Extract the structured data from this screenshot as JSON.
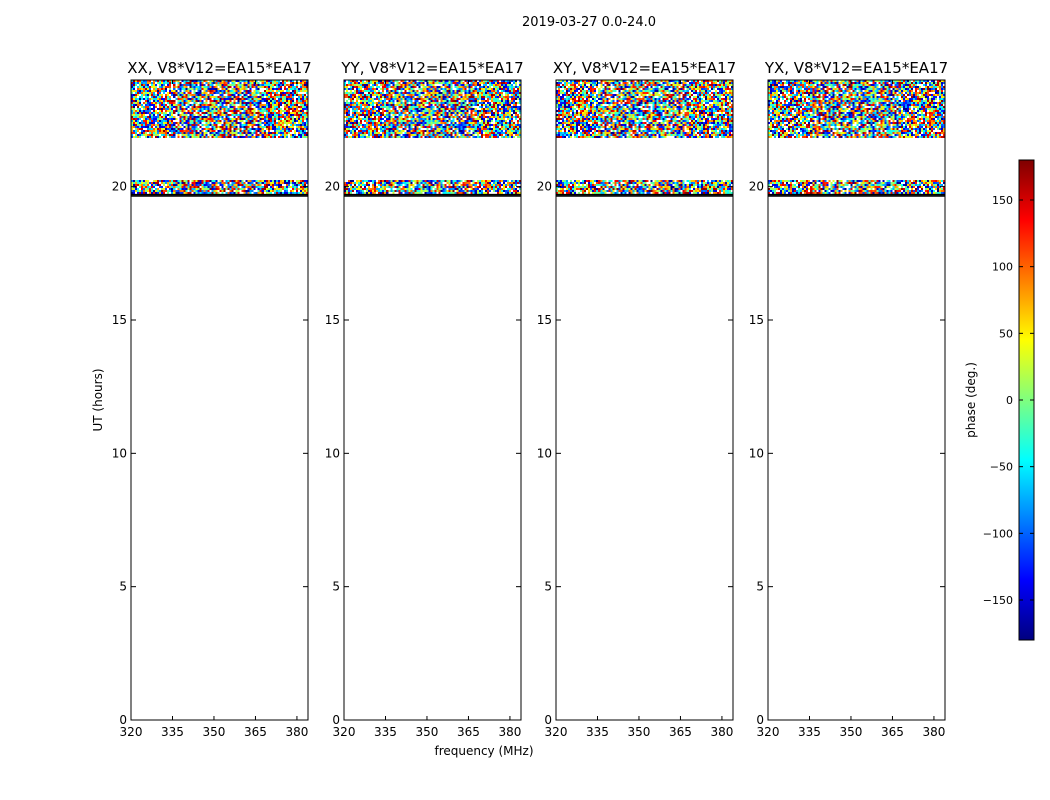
{
  "figure": {
    "suptitle": "2019-03-27 0.0-24.0",
    "ylabel": "UT (hours)",
    "xlabel": "frequency (MHz)",
    "colorbar_label": "phase (deg.)"
  },
  "colorbar": {
    "range": [
      -180,
      180
    ],
    "ticks": [
      150,
      100,
      50,
      0,
      -50,
      -100,
      -150
    ],
    "tick_labels": [
      "150",
      "100",
      "50",
      "0",
      "−50",
      "−100",
      "−150"
    ],
    "colors": [
      "#00007f",
      "#0000ff",
      "#007fff",
      "#00ffff",
      "#7fff7f",
      "#ffff00",
      "#ff7f00",
      "#ff0000",
      "#7f0000"
    ]
  },
  "chart_data": {
    "type": "heatmap",
    "x_range": [
      320,
      384
    ],
    "y_range": [
      0,
      24
    ],
    "x_ticks": [
      320,
      335,
      350,
      365,
      380
    ],
    "x_tick_labels": [
      "320",
      "335",
      "350",
      "365",
      "380"
    ],
    "y_ticks": [
      0,
      5,
      10,
      15,
      20
    ],
    "y_tick_labels": [
      "0",
      "5",
      "10",
      "15",
      "20"
    ],
    "data_rows": [
      {
        "y0": 23.7,
        "y1": 24.0
      },
      {
        "y0": 23.3,
        "y1": 23.55
      },
      {
        "y0": 22.9,
        "y1": 23.25
      },
      {
        "y0": 22.55,
        "y1": 22.85
      },
      {
        "y0": 21.9,
        "y1": 22.5
      },
      {
        "y0": 19.95,
        "y1": 20.2
      },
      {
        "y0": 19.75,
        "y1": 19.9
      }
    ],
    "flag_lines": [
      19.65,
      19.7
    ],
    "panels": [
      {
        "title": "XX, V8*V12=EA15*EA17"
      },
      {
        "title": "YY, V8*V12=EA15*EA17"
      },
      {
        "title": "XY, V8*V12=EA15*EA17"
      },
      {
        "title": "YX, V8*V12=EA15*EA17"
      }
    ]
  }
}
